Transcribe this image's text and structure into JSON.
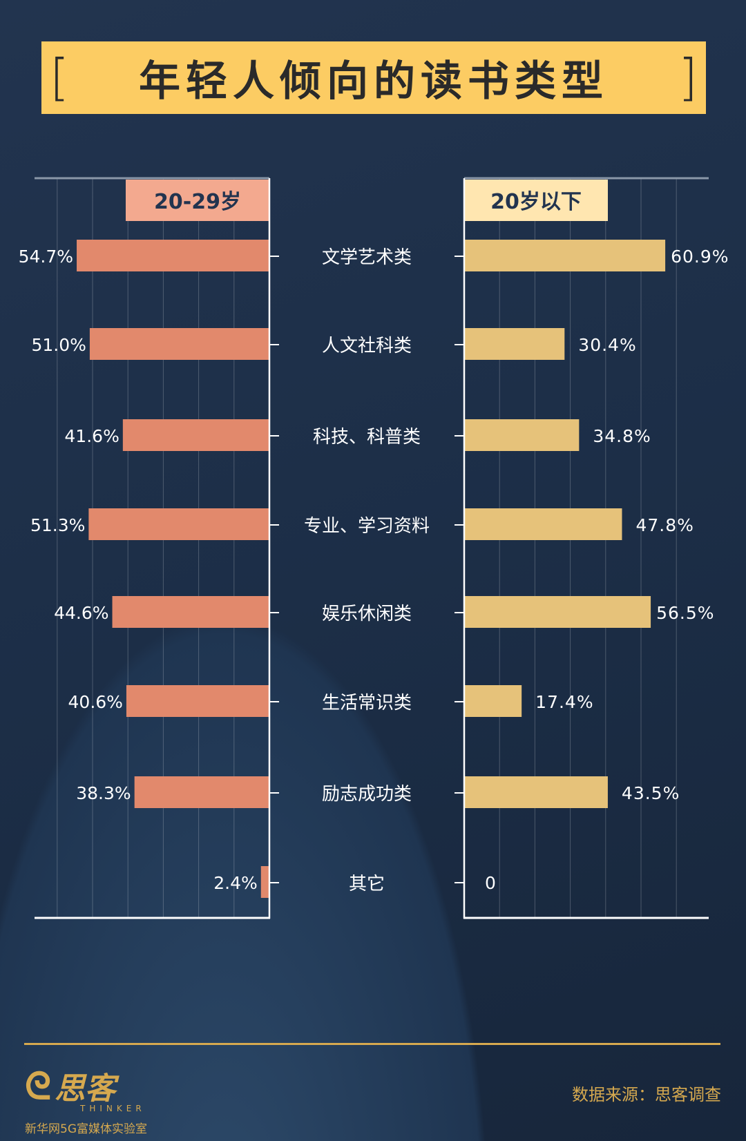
{
  "title": "年轻人倾向的读书类型",
  "chart_data": {
    "type": "bar",
    "title": "年轻人倾向的读书类型",
    "categories": [
      "文学艺术类",
      "人文社科类",
      "科技、科普类",
      "专业、学习资料",
      "娱乐休闲类",
      "生活常识类",
      "励志成功类",
      "其它"
    ],
    "series": [
      {
        "name": "20-29岁",
        "values": [
          54.7,
          51.0,
          41.6,
          51.3,
          44.6,
          40.6,
          38.3,
          2.4
        ],
        "labels": [
          "54.7%",
          "51.0%",
          "41.6%",
          "51.3%",
          "44.6%",
          "40.6%",
          "38.3%",
          "2.4%"
        ],
        "color": "#e2896c",
        "legend_color": "#f3a98f",
        "direction": "left"
      },
      {
        "name": "20岁以下",
        "values": [
          60.9,
          30.4,
          34.8,
          47.8,
          56.5,
          17.4,
          43.5,
          0
        ],
        "labels": [
          "60.9%",
          "30.4%",
          "34.8%",
          "47.8%",
          "56.5%",
          "17.4%",
          "43.5%",
          "0"
        ],
        "color": "#e6c27a",
        "legend_color": "#ffe6b0",
        "direction": "right"
      }
    ],
    "left_ticks": [
      "60%",
      "50%",
      "40%",
      "30%",
      "20%",
      "10%",
      "0"
    ],
    "right_ticks": [
      "0",
      "10%",
      "20%",
      "30%",
      "40%",
      "50%",
      "60%"
    ],
    "xlim": [
      0,
      60
    ],
    "grid": true
  },
  "footer": {
    "logo_name": "思客",
    "logo_en": "THINKER",
    "logo_sub": "新华网5G富媒体实验室",
    "source": "数据来源：思客调查"
  }
}
